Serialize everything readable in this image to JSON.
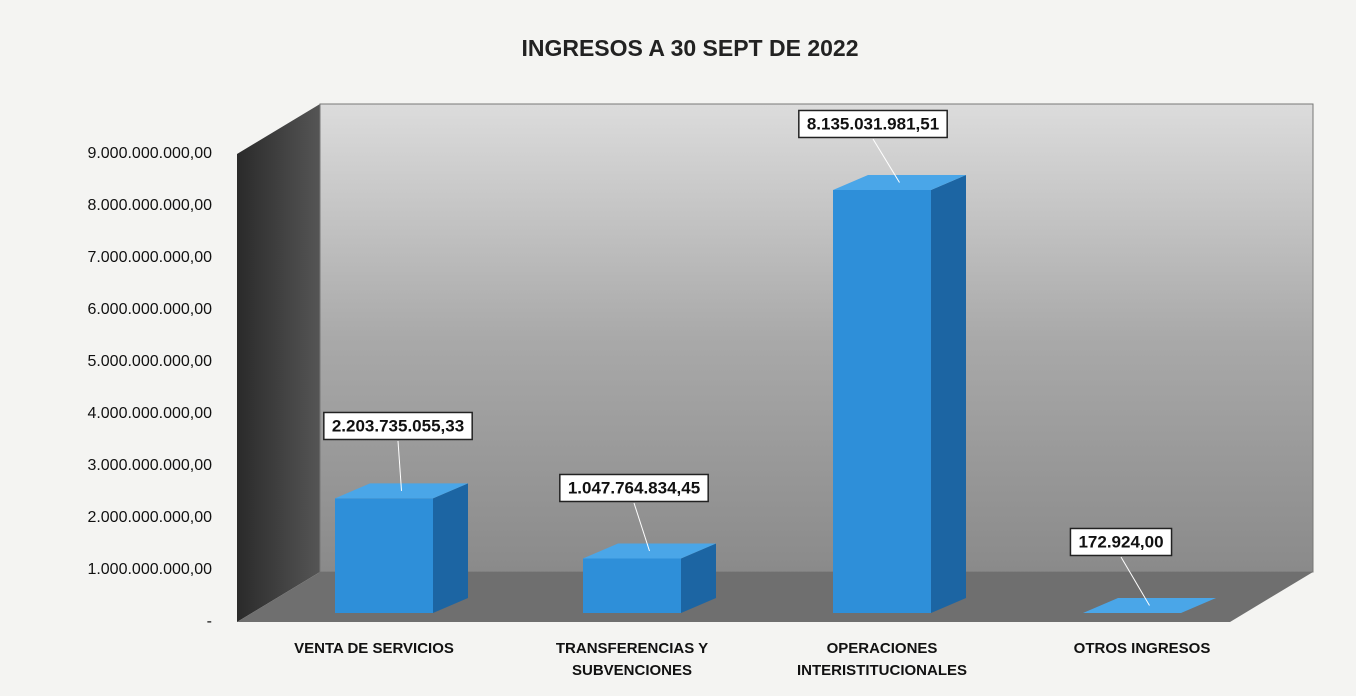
{
  "chart_data": {
    "type": "bar3d",
    "title": "INGRESOS A 30 SEPT DE 2022",
    "categories": [
      "VENTA DE SERVICIOS",
      "TRANSFERENCIAS Y SUBVENCIONES",
      "OPERACIONES INTERISTITUCIONALES",
      "OTROS INGRESOS"
    ],
    "values": [
      2203735055.33,
      1047764834.45,
      8135031981.51,
      172924
    ],
    "value_labels": [
      "2.203.735.055,33",
      "1.047.764.834,45",
      "8.135.031.981,51",
      "172.924,00"
    ],
    "color": "#2e8fd9",
    "ylim": [
      0,
      9000000000
    ],
    "yticks": [
      {
        "value": 0,
        "label": "-"
      },
      {
        "value": 1000000000,
        "label": "1.000.000.000,00"
      },
      {
        "value": 2000000000,
        "label": "2.000.000.000,00"
      },
      {
        "value": 3000000000,
        "label": "3.000.000.000,00"
      },
      {
        "value": 4000000000,
        "label": "4.000.000.000,00"
      },
      {
        "value": 5000000000,
        "label": "5.000.000.000,00"
      },
      {
        "value": 6000000000,
        "label": "6.000.000.000,00"
      },
      {
        "value": 7000000000,
        "label": "7.000.000.000,00"
      },
      {
        "value": 8000000000,
        "label": "8.000.000.000,00"
      },
      {
        "value": 9000000000,
        "label": "9.000.000.000,00"
      }
    ],
    "grid": false
  }
}
